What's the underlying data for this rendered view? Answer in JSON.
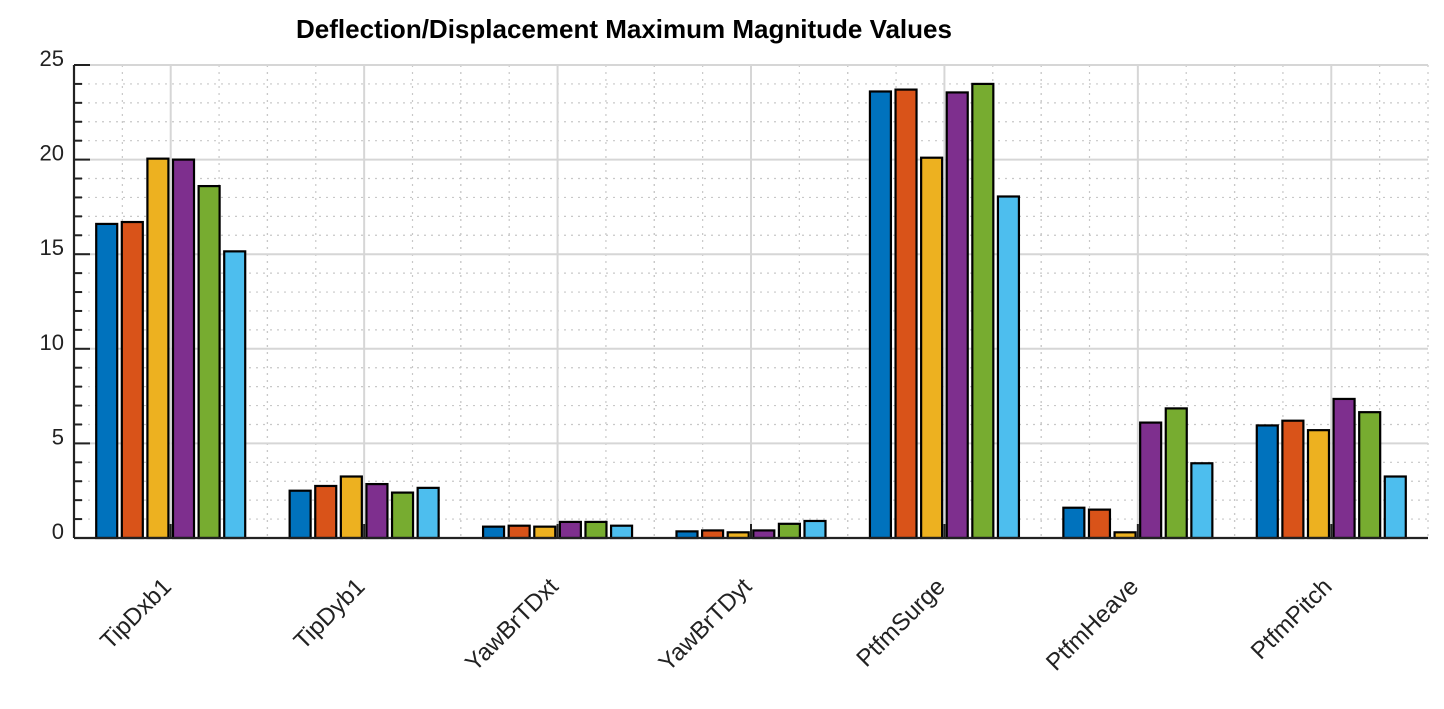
{
  "chart_data": {
    "type": "bar",
    "title": "Deflection/Displacement Maximum Magnitude Values",
    "xlabel": "",
    "ylabel": "",
    "ylim": [
      0,
      25
    ],
    "yticks": [
      "0",
      "5",
      "10",
      "15",
      "20",
      "25"
    ],
    "grid": true,
    "legend": "none",
    "categories": [
      "TipDxb1",
      "TipDyb1",
      "YawBrTDxt",
      "YawBrTDyt",
      "PtfmSurge",
      "PtfmHeave",
      "PtfmPitch"
    ],
    "series": [
      {
        "color": "#0072BD",
        "values": [
          16.6,
          2.5,
          0.6,
          0.35,
          23.6,
          1.6,
          5.95
        ]
      },
      {
        "color": "#D95319",
        "values": [
          16.7,
          2.75,
          0.65,
          0.4,
          23.7,
          1.5,
          6.2
        ]
      },
      {
        "color": "#EDB120",
        "values": [
          20.05,
          3.25,
          0.6,
          0.3,
          20.1,
          0.3,
          5.7
        ]
      },
      {
        "color": "#7E2F8E",
        "values": [
          20.0,
          2.85,
          0.85,
          0.4,
          23.55,
          6.1,
          7.35
        ]
      },
      {
        "color": "#77AC30",
        "values": [
          18.6,
          2.4,
          0.85,
          0.75,
          24.0,
          6.85,
          6.65
        ]
      },
      {
        "color": "#4DBEEE",
        "values": [
          15.15,
          2.65,
          0.65,
          0.9,
          18.05,
          3.95,
          3.25
        ]
      }
    ]
  }
}
